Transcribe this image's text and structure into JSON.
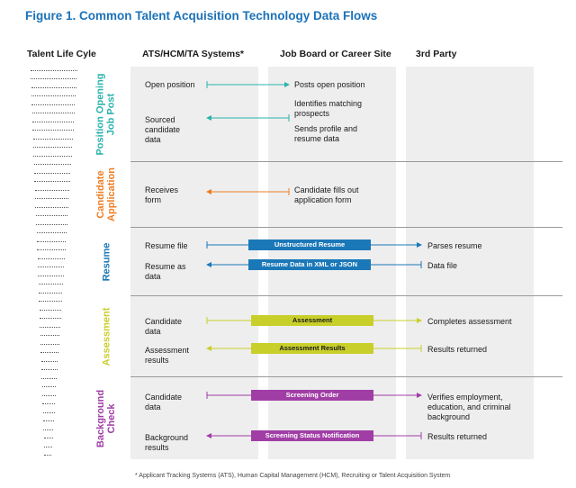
{
  "title": "Figure 1. Common Talent Acquisition Technology Data Flows",
  "headers": {
    "life_cycle": "Talent Life Cyle",
    "ats": "ATS/HCM/TA Systems*",
    "job_board": "Job Board or Career Site",
    "third_party": "3rd Party"
  },
  "stages": {
    "position": {
      "label": "Position Opening\nJob Post",
      "color": "#2bb3ad"
    },
    "application": {
      "label": "Candidate\nApplication",
      "color": "#ef7d22"
    },
    "resume": {
      "label": "Resume",
      "color": "#1b78b8"
    },
    "assessment": {
      "label": "Assessment",
      "color": "#c9cf2a"
    },
    "background": {
      "label": "Background\nCheck",
      "color": "#a03ea6"
    }
  },
  "flows": {
    "open_position": "Open position",
    "posts_open_position": "Posts open position",
    "identifies_matching": "Identifies matching\nprospects",
    "sourced_candidate": "Sourced\ncandidate\ndata",
    "sends_profile": "Sends profile and\nresume data",
    "receives_form": "Receives\nform",
    "fills_out_form": "Candidate fills out\napplication form",
    "resume_file": "Resume file",
    "parses_resume": "Parses resume",
    "resume_as_data": "Resume as\ndata",
    "data_file": "Data file",
    "assess_candidate_data": "Candidate\ndata",
    "completes_assessment": "Completes assessment",
    "assessment_results": "Assessment\nresults",
    "results_returned_1": "Results returned",
    "bg_candidate_data": "Candidate\ndata",
    "verifies": "Verifies employment,\neducation, and criminal\nbackground",
    "background_results": "Background\nresults",
    "results_returned_2": "Results returned"
  },
  "badges": {
    "unstructured_resume": "Unstructured Resume",
    "resume_xml_json": "Resume Data in XML or JSON",
    "assessment": "Assessment",
    "assessment_results": "Assessment Results",
    "screening_order": "Screening Order",
    "screening_status": "Screening Status Notification"
  },
  "footnote": "* Applicant Tracking Systems (ATS), Human Capital Management (HCM), Recruiting or Talent Acquisition System"
}
